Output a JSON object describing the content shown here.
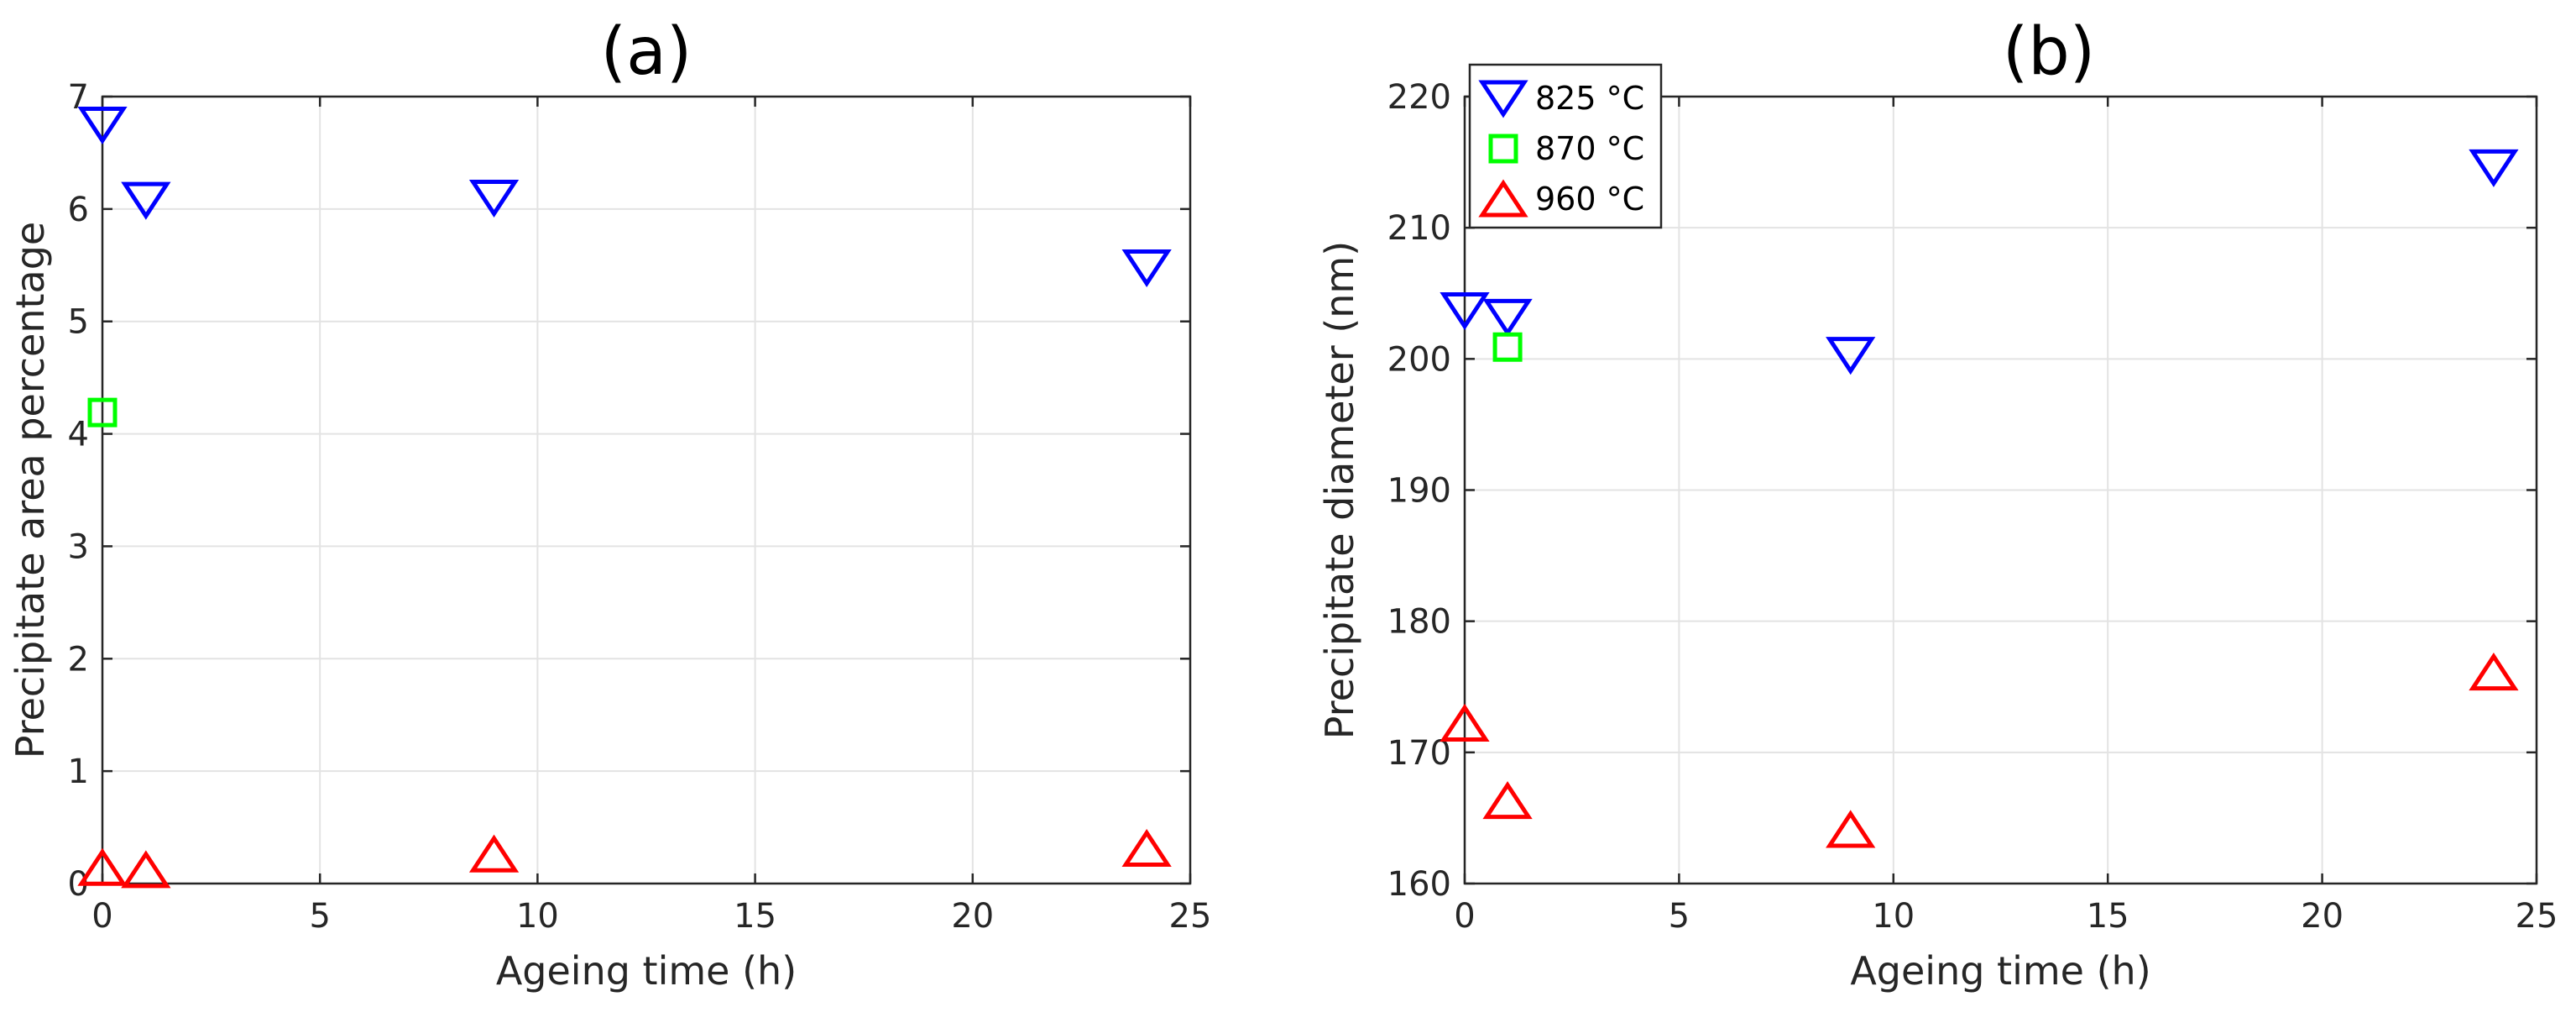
{
  "chart_data": [
    {
      "type": "scatter",
      "title": "(a)",
      "xlabel": "Ageing time (h)",
      "ylabel": "Precipitate area percentage",
      "xlim": [
        0,
        25
      ],
      "ylim": [
        0,
        7
      ],
      "xticks": [
        0,
        5,
        10,
        15,
        20,
        25
      ],
      "yticks": [
        0,
        1,
        2,
        3,
        4,
        5,
        6,
        7
      ],
      "grid": true,
      "series": [
        {
          "name": "825 °C",
          "marker": "triangle-down",
          "color": "#0000ff",
          "x": [
            0,
            1,
            9,
            24
          ],
          "y": [
            6.75,
            6.08,
            6.1,
            5.48
          ]
        },
        {
          "name": "870 °C",
          "marker": "square",
          "color": "#00ff00",
          "x": [
            0
          ],
          "y": [
            4.19
          ]
        },
        {
          "name": "960 °C",
          "marker": "triangle-up",
          "color": "#ff0000",
          "x": [
            0,
            1,
            9,
            24
          ],
          "y": [
            0.14,
            0.12,
            0.26,
            0.31
          ]
        }
      ]
    },
    {
      "type": "scatter",
      "title": "(b)",
      "xlabel": "Ageing time (h)",
      "ylabel": "Precipitate diameter (nm)",
      "xlim": [
        0,
        25
      ],
      "ylim": [
        160,
        220
      ],
      "xticks": [
        0,
        5,
        10,
        15,
        20,
        25
      ],
      "yticks": [
        160,
        170,
        180,
        190,
        200,
        210,
        220
      ],
      "grid": true,
      "legend": "top-left",
      "series": [
        {
          "name": "825 °C",
          "marker": "triangle-down",
          "color": "#0000ff",
          "x": [
            0,
            1,
            9,
            24
          ],
          "y": [
            203.7,
            203.2,
            200.3,
            214.6
          ]
        },
        {
          "name": "870 °C",
          "marker": "square",
          "color": "#00ff00",
          "x": [
            1
          ],
          "y": [
            200.9
          ]
        },
        {
          "name": "960 °C",
          "marker": "triangle-up",
          "color": "#ff0000",
          "x": [
            0,
            1,
            9,
            24
          ],
          "y": [
            172.2,
            166.3,
            164.1,
            176.1
          ]
        }
      ]
    }
  ]
}
